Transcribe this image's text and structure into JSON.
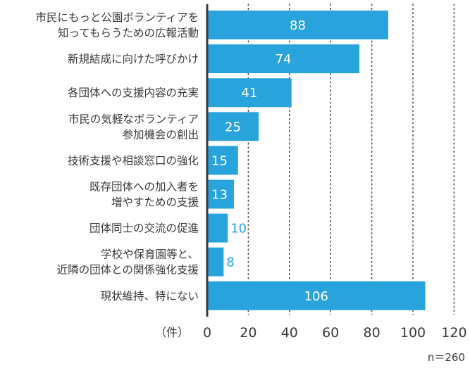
{
  "chart_data": {
    "type": "bar",
    "orientation": "horizontal",
    "categories": [
      [
        "市民にもっと公園ボランティアを",
        "知ってもらうための広報活動"
      ],
      [
        "新規結成に向けた呼びかけ"
      ],
      [
        "各団体への支援内容の充実"
      ],
      [
        "市民の気軽なボランティア",
        "参加機会の創出"
      ],
      [
        "技術支援や相談窓口の強化"
      ],
      [
        "既存団体への加入者を",
        "増やすための支援"
      ],
      [
        "団体同士の交流の促進"
      ],
      [
        "学校や保育園等と、",
        "近隣の団体との関係強化支援"
      ],
      [
        "現状維持、特にない"
      ]
    ],
    "values": [
      88,
      74,
      41,
      25,
      15,
      13,
      10,
      8,
      106
    ],
    "value_labels": [
      "88",
      "74",
      "41",
      "25",
      "15",
      "13",
      "10",
      "8",
      "106"
    ],
    "xlim": [
      0,
      120
    ],
    "ticks": [
      0,
      20,
      40,
      60,
      80,
      100,
      120
    ],
    "tick_labels": [
      "0",
      "20",
      "40",
      "60",
      "80",
      "100",
      "120"
    ],
    "unit_label": "（件）",
    "sample_size_label": "n＝260",
    "grid": "vertical dotted",
    "colors": {
      "bar": "#29a3dc",
      "value_inside": "#ffffff",
      "value_outside": "#29a3dc",
      "axis": "#3a3a3a",
      "grid": "#555555",
      "text": "#3a3a3a"
    }
  }
}
